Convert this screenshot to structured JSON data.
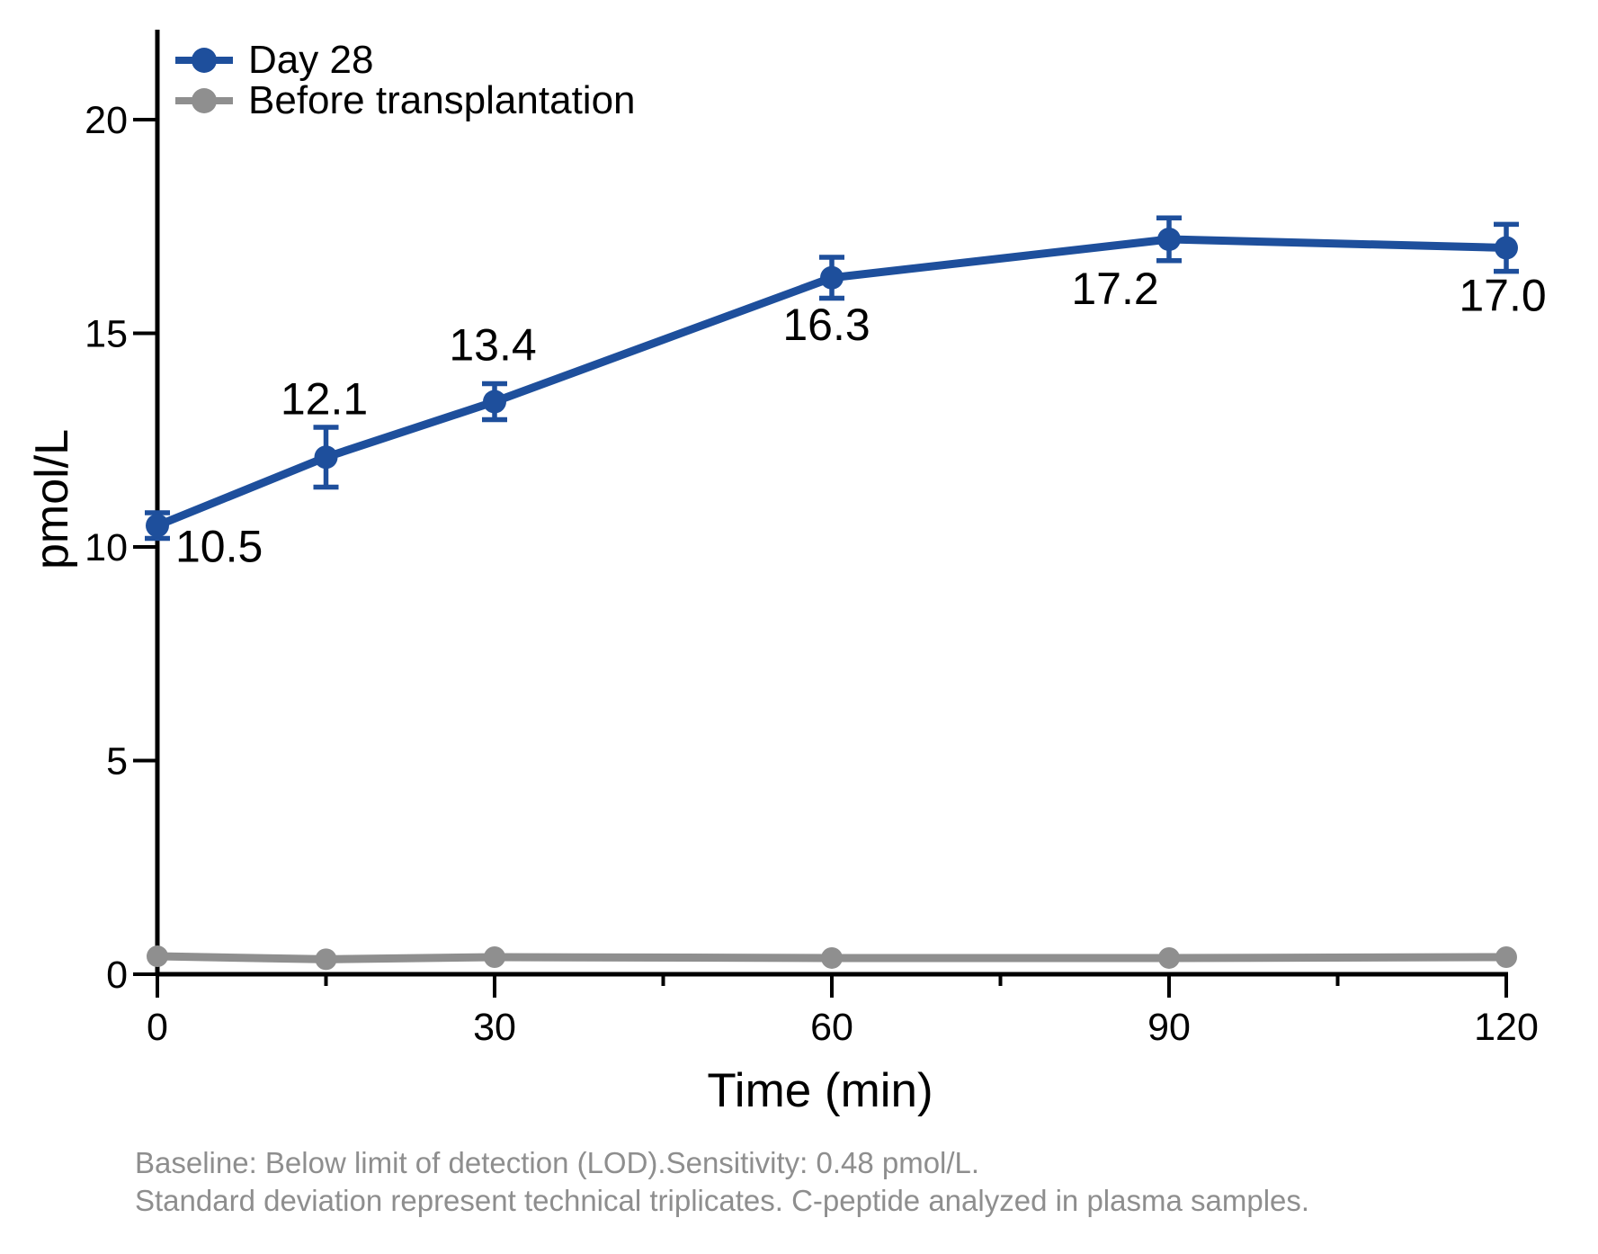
{
  "chart_data": {
    "type": "line",
    "x": [
      0,
      15,
      30,
      60,
      90,
      120
    ],
    "x_ticks": [
      0,
      30,
      60,
      90,
      120
    ],
    "x_minor_ticks": [
      15,
      45,
      75,
      105
    ],
    "y_ticks": [
      0,
      5,
      10,
      15,
      20
    ],
    "series": [
      {
        "name": "Day 28",
        "color": "#1e4f9c",
        "values": [
          10.5,
          12.1,
          13.4,
          16.3,
          17.2,
          17.0
        ],
        "sd": [
          0.3,
          0.7,
          0.42,
          0.48,
          0.5,
          0.55
        ],
        "point_labels": [
          "10.5",
          "12.1",
          "13.4",
          "16.3",
          "17.2",
          "17.0"
        ]
      },
      {
        "name": "Before transplantation",
        "color": "#8f8f8f",
        "values": [
          0.42,
          0.35,
          0.4,
          0.38,
          0.38,
          0.4
        ],
        "sd": null,
        "point_labels": null
      }
    ],
    "title": "",
    "xlabel": "Time (min)",
    "ylabel": "pmol/L",
    "xlim": [
      0,
      120
    ],
    "ylim": [
      0,
      22
    ],
    "grid": false,
    "legend_position": "top-left"
  },
  "footer": {
    "line1": "Baseline: Below limit of detection (LOD).Sensitivity: 0.48 pmol/L.",
    "line2": "Standard deviation represent technical triplicates. C-peptide analyzed in plasma samples."
  },
  "colors": {
    "axis": "#000000",
    "tick_text": "#000000",
    "footer_text": "#8e8e8e",
    "background": "#ffffff"
  }
}
